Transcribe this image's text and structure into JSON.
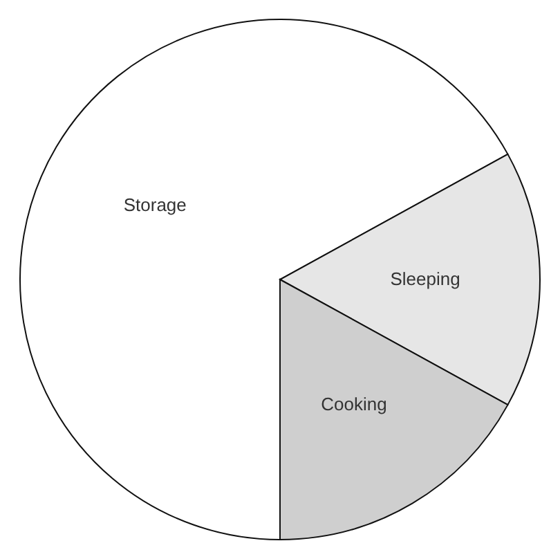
{
  "chart_data": {
    "type": "pie",
    "categories": [
      "Storage",
      "Sleeping",
      "Cooking"
    ],
    "values": [
      67,
      16,
      17
    ],
    "colors": [
      "#ffffff",
      "#e6e6e6",
      "#cfcfcf"
    ]
  }
}
